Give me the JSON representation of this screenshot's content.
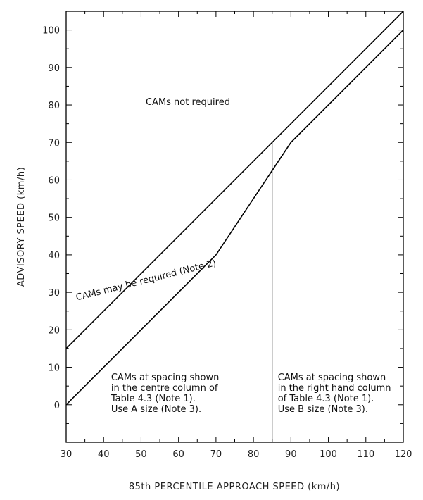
{
  "chart_data": {
    "type": "line",
    "xlabel": "85th PERCENTILE APPROACH SPEED (km/h)",
    "ylabel": "ADVISORY SPEED (km/h)",
    "xlim": [
      30,
      120
    ],
    "ylim": [
      -10,
      105
    ],
    "x_ticks": [
      30,
      40,
      50,
      60,
      70,
      80,
      90,
      100,
      110,
      120
    ],
    "y_ticks": [
      0,
      10,
      20,
      30,
      40,
      50,
      60,
      70,
      80,
      90,
      100
    ],
    "grid": false,
    "series": [
      {
        "points": [
          [
            30,
            15
          ],
          [
            120,
            105
          ]
        ]
      },
      {
        "points": [
          [
            30,
            0
          ],
          [
            70,
            40
          ],
          [
            90,
            70
          ],
          [
            120,
            100
          ]
        ]
      },
      {
        "points": [
          [
            85,
            -10
          ],
          [
            85,
            70
          ]
        ]
      }
    ],
    "annotations": [
      {
        "key": "not_required",
        "lines": [
          "CAMs not required"
        ],
        "x": 62.5,
        "y": 80,
        "rotate": false
      },
      {
        "key": "may_be_required",
        "lines": [
          "CAMs may be required (Note 2)"
        ],
        "x": 51.5,
        "y": 32.5,
        "rotate": true
      },
      {
        "key": "centre_column",
        "lines": [
          "CAMs at spacing shown",
          "in the centre column of",
          "Table 4.3 (Note 1).",
          "Use A size (Note 3)."
        ],
        "x": 42,
        "y": 6.5,
        "rotate": false
      },
      {
        "key": "right_column",
        "lines": [
          "CAMs at spacing shown",
          "in the right hand column",
          "of Table 4.3 (Note 1).",
          "Use B size (Note 3)."
        ],
        "x": 86.5,
        "y": 6.5,
        "rotate": false
      }
    ]
  }
}
